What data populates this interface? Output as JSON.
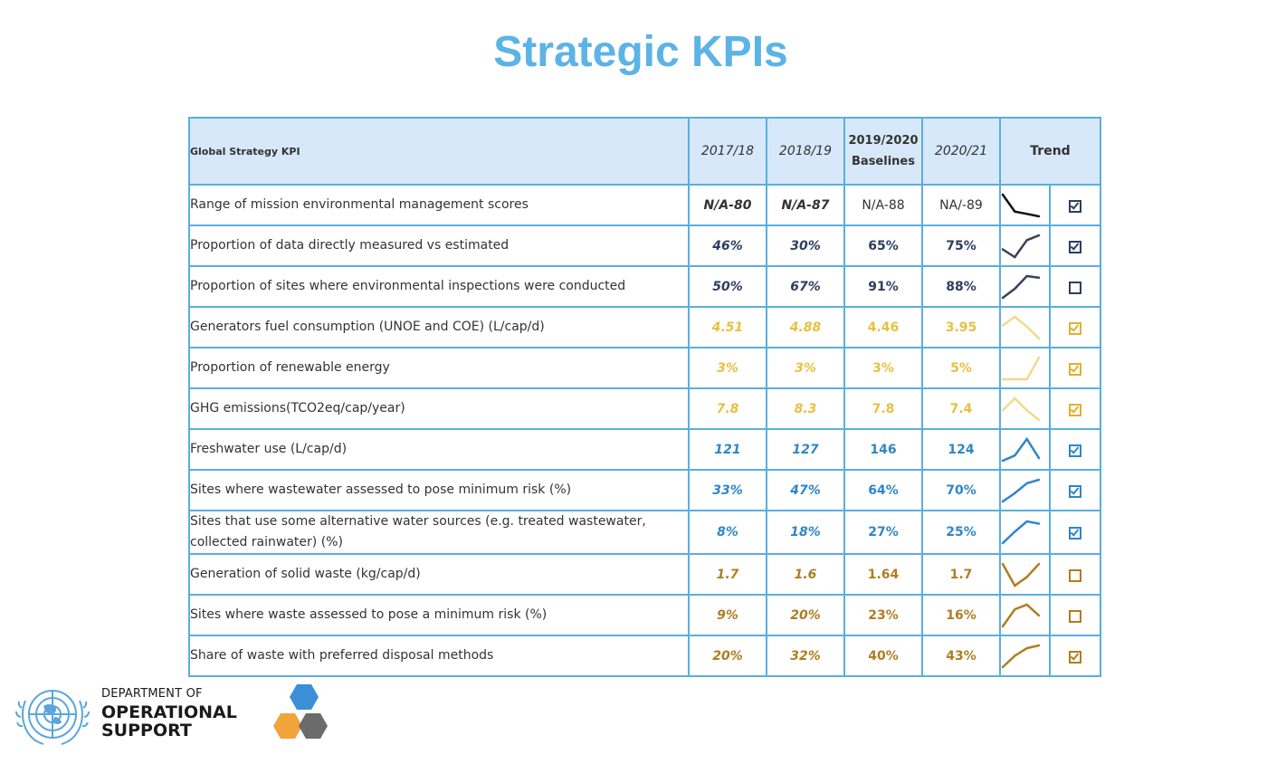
{
  "title": "Strategic KPIs",
  "table": {
    "headers": {
      "kpi": "Global Strategy KPI",
      "y1": "2017/18",
      "y2": "2018/19",
      "base_line1": "2019/2020",
      "base_line2": "Baselines",
      "y4": "2020/21",
      "trend": "Trend"
    },
    "rows": [
      {
        "name": "Range of mission environmental management scores",
        "v1": "N/A-80",
        "v2": "N/A-87",
        "v3": "N/A-88",
        "v4": "NA/-89",
        "color": "#333333",
        "checked": true
      },
      {
        "name": "Proportion of data directly measured vs estimated",
        "v1": "46%",
        "v2": "30%",
        "v3": "65%",
        "v4": "75%",
        "color": "#2d3e5e",
        "checked": true
      },
      {
        "name": "Proportion of sites where environmental inspections were conducted",
        "v1": "50%",
        "v2": "67%",
        "v3": "91%",
        "v4": "88%",
        "color": "#2d3e5e",
        "checked": false
      },
      {
        "name": "Generators fuel consumption (UNOE and COE) (L/cap/d)",
        "v1": "4.51",
        "v2": "4.88",
        "v3": "4.46",
        "v4": "3.95",
        "color": "#e8c040",
        "checked": true
      },
      {
        "name": "Proportion of renewable energy",
        "v1": "3%",
        "v2": "3%",
        "v3": "3%",
        "v4": "5%",
        "color": "#e8c040",
        "checked": true
      },
      {
        "name": "GHG emissions(TCO2eq/cap/year)",
        "v1": "7.8",
        "v2": "8.3",
        "v3": "7.8",
        "v4": "7.4",
        "color": "#e8c040",
        "checked": true
      },
      {
        "name": "Freshwater use (L/cap/d)",
        "v1": "121",
        "v2": "127",
        "v3": "146",
        "v4": "124",
        "color": "#2f86c8",
        "checked": true
      },
      {
        "name": "Sites where wastewater assessed to pose minimum risk (%)",
        "v1": "33%",
        "v2": "47%",
        "v3": "64%",
        "v4": "70%",
        "color": "#2f86c8",
        "checked": true
      },
      {
        "name": "Sites that use some alternative water sources (e.g. treated wastewater, collected rainwater) (%)",
        "v1": "8%",
        "v2": "18%",
        "v3": "27%",
        "v4": "25%",
        "color": "#2f86c8",
        "checked": true
      },
      {
        "name": "Generation of solid waste (kg/cap/d)",
        "v1": "1.7",
        "v2": "1.6",
        "v3": "1.64",
        "v4": "1.7",
        "color": "#b07d20",
        "checked": false
      },
      {
        "name": "Sites where waste assessed to pose a minimum risk (%)",
        "v1": "9%",
        "v2": "20%",
        "v3": "23%",
        "v4": "16%",
        "color": "#b07d20",
        "checked": false
      },
      {
        "name": "Share of waste with preferred disposal methods",
        "v1": "20%",
        "v2": "32%",
        "v3": "40%",
        "v4": "43%",
        "color": "#b07d20",
        "checked": true
      }
    ]
  },
  "footer": {
    "line1": "DEPARTMENT OF",
    "line2": "OPERATIONAL",
    "line3": "SUPPORT",
    "hex_colors": [
      "#3a8fd6",
      "#f0a43a",
      "#6b6b6b"
    ]
  }
}
